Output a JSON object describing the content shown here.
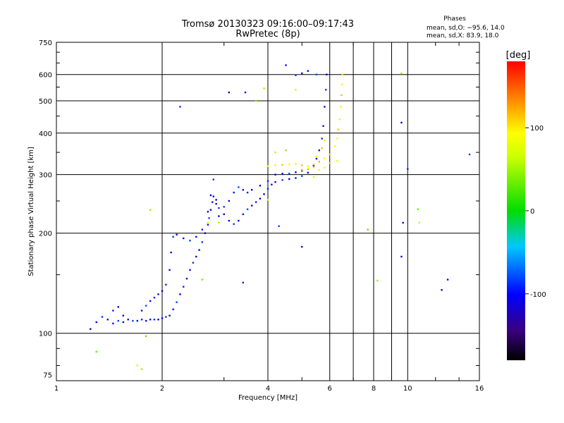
{
  "chart_data": {
    "type": "scatter",
    "title": "Tromsø 20130323 09:16:00–09:17:43",
    "subtitle": "RwPretec (8p)",
    "xlabel": "Frequency [MHz]",
    "ylabel": "Stationary phase Virtual Height [km]",
    "x_scale": "log",
    "y_scale": "log",
    "xlim": [
      1,
      16
    ],
    "ylim": [
      72,
      750
    ],
    "x_ticks": [
      1,
      2,
      4,
      6,
      8,
      10,
      16
    ],
    "y_ticks": [
      75,
      100,
      200,
      300,
      400,
      500,
      600,
      750
    ],
    "grid": true,
    "phase_info": {
      "header": "Phases",
      "line1": "mean, sd,O: −95.6, 14.0",
      "line2": "mean, sd,X: 83.9, 18.0"
    },
    "colorbar": {
      "label": "[deg]",
      "min": -180,
      "max": 180,
      "ticks": [
        -100,
        0,
        100
      ]
    },
    "series": [
      {
        "mode": "O",
        "phase_deg": -100,
        "points": [
          [
            1.25,
            103
          ],
          [
            1.3,
            108
          ],
          [
            1.35,
            112
          ],
          [
            1.4,
            110
          ],
          [
            1.45,
            107
          ],
          [
            1.5,
            109
          ],
          [
            1.55,
            108
          ],
          [
            1.6,
            110
          ],
          [
            1.65,
            109
          ],
          [
            1.7,
            109
          ],
          [
            1.75,
            110
          ],
          [
            1.8,
            109
          ],
          [
            1.85,
            110
          ],
          [
            1.9,
            110
          ],
          [
            1.95,
            110
          ],
          [
            2.0,
            111
          ],
          [
            2.05,
            112
          ],
          [
            2.1,
            113
          ],
          [
            2.15,
            118
          ],
          [
            2.2,
            124
          ],
          [
            2.25,
            131
          ],
          [
            2.3,
            138
          ],
          [
            2.35,
            146
          ],
          [
            2.4,
            155
          ],
          [
            2.45,
            163
          ],
          [
            2.5,
            170
          ],
          [
            2.55,
            178
          ],
          [
            2.6,
            188
          ],
          [
            2.65,
            200
          ],
          [
            2.7,
            212
          ],
          [
            2.72,
            222
          ],
          [
            2.75,
            235
          ],
          [
            2.78,
            248
          ],
          [
            2.8,
            258
          ],
          [
            2.85,
            252
          ],
          [
            2.9,
            238
          ],
          [
            3.0,
            228
          ],
          [
            3.1,
            218
          ],
          [
            3.2,
            213
          ],
          [
            3.3,
            218
          ],
          [
            3.4,
            228
          ],
          [
            3.5,
            236
          ],
          [
            3.6,
            242
          ],
          [
            3.7,
            248
          ],
          [
            3.8,
            254
          ],
          [
            3.9,
            262
          ],
          [
            4.0,
            272
          ],
          [
            4.1,
            280
          ],
          [
            4.2,
            285
          ],
          [
            4.4,
            289
          ],
          [
            4.6,
            291
          ],
          [
            4.8,
            293
          ],
          [
            5.0,
            297
          ],
          [
            5.2,
            304
          ],
          [
            5.4,
            318
          ],
          [
            5.5,
            335
          ],
          [
            5.6,
            355
          ],
          [
            5.7,
            385
          ],
          [
            5.75,
            420
          ],
          [
            5.8,
            480
          ],
          [
            5.85,
            540
          ],
          [
            5.88,
            600
          ],
          [
            1.75,
            117
          ],
          [
            1.8,
            121
          ],
          [
            1.85,
            125
          ],
          [
            1.9,
            128
          ],
          [
            1.95,
            131
          ],
          [
            2.0,
            134
          ],
          [
            2.05,
            140
          ],
          [
            2.1,
            155
          ],
          [
            2.12,
            175
          ],
          [
            2.15,
            195
          ],
          [
            2.2,
            198
          ],
          [
            2.3,
            193
          ],
          [
            2.4,
            190
          ],
          [
            2.5,
            195
          ],
          [
            2.6,
            205
          ],
          [
            2.7,
            232
          ],
          [
            2.75,
            260
          ],
          [
            2.8,
            290
          ],
          [
            2.85,
            245
          ],
          [
            2.9,
            225
          ],
          [
            3.0,
            240
          ],
          [
            3.1,
            250
          ],
          [
            3.2,
            265
          ],
          [
            3.3,
            275
          ],
          [
            3.4,
            270
          ],
          [
            3.5,
            265
          ],
          [
            3.6,
            270
          ],
          [
            3.8,
            278
          ],
          [
            4.0,
            287
          ],
          [
            4.2,
            300
          ],
          [
            4.4,
            302
          ],
          [
            4.6,
            302
          ],
          [
            4.8,
            305
          ],
          [
            5.0,
            308
          ],
          [
            5.2,
            312
          ],
          [
            5.4,
            320
          ],
          [
            1.45,
            117
          ],
          [
            1.5,
            120
          ],
          [
            1.55,
            113
          ],
          [
            4.8,
            597
          ],
          [
            5.0,
            605
          ],
          [
            5.2,
            615
          ],
          [
            2.25,
            480
          ],
          [
            3.1,
            530
          ],
          [
            3.45,
            530
          ],
          [
            4.3,
            210
          ],
          [
            5.0,
            182
          ],
          [
            3.4,
            142
          ],
          [
            9.6,
            170
          ],
          [
            9.7,
            215
          ],
          [
            10.0,
            312
          ],
          [
            12.5,
            135
          ],
          [
            13.0,
            145
          ],
          [
            15.0,
            345
          ],
          [
            9.6,
            430
          ],
          [
            4.5,
            640
          ],
          [
            5.5,
            600
          ]
        ]
      },
      {
        "mode": "X",
        "phase_deg": 100,
        "points": [
          [
            4.0,
            318
          ],
          [
            4.2,
            320
          ],
          [
            4.4,
            321
          ],
          [
            4.6,
            322
          ],
          [
            4.8,
            323
          ],
          [
            5.0,
            320
          ],
          [
            5.2,
            318
          ],
          [
            5.4,
            322
          ],
          [
            5.6,
            328
          ],
          [
            5.8,
            336
          ],
          [
            6.0,
            345
          ],
          [
            6.2,
            365
          ],
          [
            6.3,
            385
          ],
          [
            6.35,
            410
          ],
          [
            6.4,
            440
          ],
          [
            6.45,
            480
          ],
          [
            6.48,
            520
          ],
          [
            6.5,
            560
          ],
          [
            6.52,
            600
          ],
          [
            5.0,
            310
          ],
          [
            5.2,
            313
          ],
          [
            5.4,
            316
          ],
          [
            5.6,
            310
          ],
          [
            5.8,
            315
          ],
          [
            6.0,
            325
          ],
          [
            6.3,
            330
          ],
          [
            5.8,
            380
          ],
          [
            5.7,
            360
          ],
          [
            5.5,
            340
          ]
        ]
      },
      {
        "mode": "other",
        "phase_deg": 50,
        "points": [
          [
            1.8,
            98
          ],
          [
            1.85,
            235
          ],
          [
            1.7,
            80
          ],
          [
            1.3,
            88
          ],
          [
            1.75,
            78
          ],
          [
            2.7,
            215
          ],
          [
            3.7,
            500
          ],
          [
            3.9,
            545
          ],
          [
            4.0,
            252
          ],
          [
            4.5,
            355
          ],
          [
            4.2,
            350
          ],
          [
            7.7,
            205
          ],
          [
            8.2,
            144
          ],
          [
            10.8,
            215
          ],
          [
            10.7,
            236
          ],
          [
            9.6,
            605
          ],
          [
            4.8,
            540
          ],
          [
            2.6,
            145
          ],
          [
            2.9,
            215
          ],
          [
            5.4,
            295
          ]
        ]
      }
    ]
  }
}
